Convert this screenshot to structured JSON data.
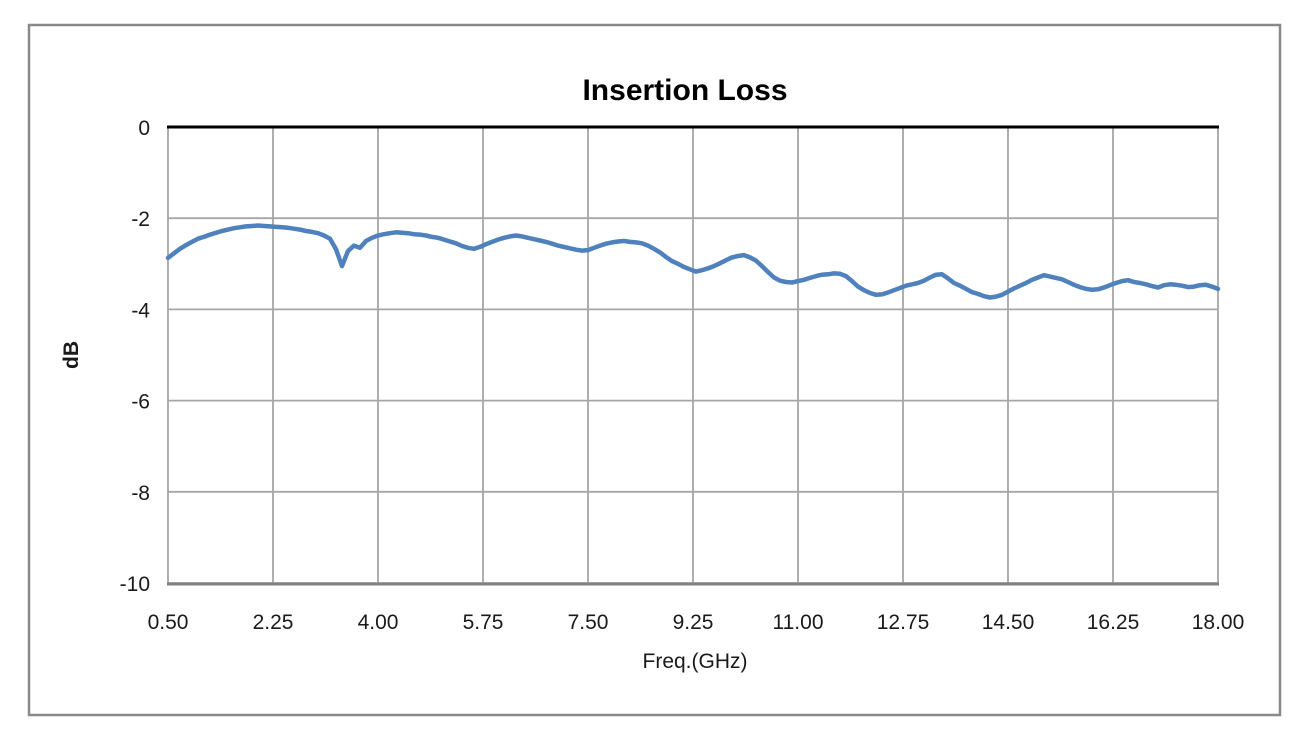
{
  "page": {
    "background": "#FFFFFF"
  },
  "chart_data": {
    "type": "line",
    "title": "Insertion Loss",
    "xlabel": "Freq.(GHz)",
    "ylabel": "dB",
    "xlim": [
      0.5,
      18.0
    ],
    "ylim": [
      -10,
      0
    ],
    "x_ticks": [
      "0.50",
      "2.25",
      "4.00",
      "5.75",
      "7.50",
      "9.25",
      "11.00",
      "12.75",
      "14.50",
      "16.25",
      "18.00"
    ],
    "y_ticks": [
      "0",
      "-2",
      "-4",
      "-6",
      "-8",
      "-10"
    ],
    "grid": true,
    "legend": "none",
    "colors": {
      "series": "#4F81BD",
      "gridline": "#A6A6A6",
      "axis_top": "#000000",
      "axis_bottom": "#808080",
      "frame_border": "#898989"
    },
    "series": [
      {
        "name": "Insertion Loss",
        "x_start": 0.5,
        "x_step": 0.1,
        "y": [
          -2.87,
          -2.77,
          -2.67,
          -2.59,
          -2.52,
          -2.45,
          -2.41,
          -2.36,
          -2.32,
          -2.28,
          -2.25,
          -2.22,
          -2.2,
          -2.18,
          -2.17,
          -2.16,
          -2.17,
          -2.18,
          -2.19,
          -2.2,
          -2.21,
          -2.23,
          -2.25,
          -2.28,
          -2.3,
          -2.33,
          -2.38,
          -2.45,
          -2.68,
          -3.05,
          -2.72,
          -2.6,
          -2.65,
          -2.5,
          -2.43,
          -2.38,
          -2.35,
          -2.33,
          -2.31,
          -2.32,
          -2.33,
          -2.35,
          -2.36,
          -2.38,
          -2.41,
          -2.43,
          -2.47,
          -2.51,
          -2.55,
          -2.61,
          -2.65,
          -2.67,
          -2.63,
          -2.57,
          -2.52,
          -2.47,
          -2.43,
          -2.4,
          -2.38,
          -2.4,
          -2.43,
          -2.46,
          -2.49,
          -2.52,
          -2.56,
          -2.6,
          -2.63,
          -2.66,
          -2.69,
          -2.71,
          -2.7,
          -2.65,
          -2.6,
          -2.56,
          -2.53,
          -2.51,
          -2.5,
          -2.52,
          -2.53,
          -2.55,
          -2.6,
          -2.67,
          -2.75,
          -2.85,
          -2.94,
          -3.0,
          -3.07,
          -3.12,
          -3.17,
          -3.14,
          -3.1,
          -3.05,
          -2.99,
          -2.92,
          -2.86,
          -2.83,
          -2.81,
          -2.86,
          -2.93,
          -3.05,
          -3.18,
          -3.3,
          -3.37,
          -3.4,
          -3.41,
          -3.38,
          -3.35,
          -3.31,
          -3.27,
          -3.24,
          -3.23,
          -3.21,
          -3.22,
          -3.27,
          -3.38,
          -3.5,
          -3.58,
          -3.64,
          -3.68,
          -3.67,
          -3.63,
          -3.58,
          -3.53,
          -3.48,
          -3.45,
          -3.42,
          -3.37,
          -3.3,
          -3.24,
          -3.23,
          -3.32,
          -3.42,
          -3.48,
          -3.55,
          -3.62,
          -3.66,
          -3.71,
          -3.74,
          -3.72,
          -3.68,
          -3.61,
          -3.54,
          -3.48,
          -3.42,
          -3.35,
          -3.3,
          -3.25,
          -3.28,
          -3.31,
          -3.34,
          -3.4,
          -3.46,
          -3.51,
          -3.55,
          -3.57,
          -3.56,
          -3.52,
          -3.47,
          -3.42,
          -3.38,
          -3.36,
          -3.4,
          -3.42,
          -3.45,
          -3.49,
          -3.52,
          -3.47,
          -3.45,
          -3.46,
          -3.48,
          -3.51,
          -3.5,
          -3.47,
          -3.46,
          -3.5,
          -3.55
        ]
      }
    ]
  }
}
